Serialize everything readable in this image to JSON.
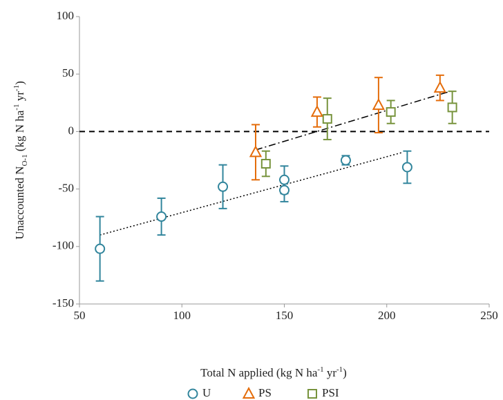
{
  "chart_data": {
    "type": "scatter",
    "xlabel": [
      {
        "text": "Total N applied (kg N ha"
      },
      {
        "text": "-1",
        "pos": "sup"
      },
      {
        "text": " yr"
      },
      {
        "text": "-1",
        "pos": "sup"
      },
      {
        "text": ")"
      }
    ],
    "ylabel": [
      {
        "text": "Unaccounted N"
      },
      {
        "text": "O-1",
        "pos": "sub"
      },
      {
        "text": " (kg N ha"
      },
      {
        "text": "-1",
        "pos": "sup"
      },
      {
        "text": " yr"
      },
      {
        "text": "-1",
        "pos": "sup"
      },
      {
        "text": ")"
      }
    ],
    "xlim": [
      50,
      250
    ],
    "xticks": [
      50,
      100,
      150,
      200,
      250
    ],
    "ylim": [
      -150,
      100
    ],
    "yticks": [
      -150,
      -100,
      -50,
      0,
      50,
      100
    ],
    "reference_line": 0,
    "legend": "bottom",
    "series": [
      {
        "name": "U",
        "color": "#31859c",
        "marker": "circle",
        "x": [
          60,
          90,
          120,
          150,
          150,
          180,
          210
        ],
        "values": [
          -102,
          -74,
          -48,
          -42,
          -51,
          -25,
          -31
        ],
        "errors": [
          28,
          16,
          19,
          12,
          10,
          4,
          14
        ],
        "trend": {
          "x": [
            60,
            208
          ],
          "y": [
            -90,
            -18
          ],
          "dash": "2,3"
        }
      },
      {
        "name": "PS",
        "color": "#e46c0a",
        "marker": "triangle",
        "x": [
          136,
          166,
          196,
          226
        ],
        "values": [
          -18,
          17,
          23,
          38
        ],
        "errors": [
          24,
          13,
          24,
          11
        ],
        "trend": {
          "x": [
            136,
            231
          ],
          "y": [
            -16,
            35
          ],
          "dash": "10,4,2,4"
        }
      },
      {
        "name": "PSI",
        "color": "#77933c",
        "marker": "square",
        "x": [
          141,
          171,
          202,
          232
        ],
        "values": [
          -28,
          11,
          17,
          21
        ],
        "errors": [
          11,
          18,
          10,
          14
        ]
      }
    ]
  }
}
